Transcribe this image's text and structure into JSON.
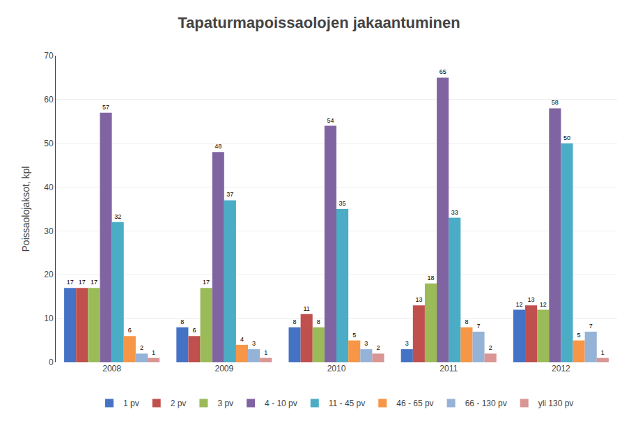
{
  "chart_data": {
    "type": "bar",
    "title": "Tapaturmapoissaolojen jakaantuminen",
    "ylabel": "Poissaolojaksot, kpl",
    "categories": [
      "2008",
      "2009",
      "2010",
      "2011",
      "2012"
    ],
    "series": [
      {
        "name": "1 pv",
        "color": "#4472C4",
        "values": [
          17,
          8,
          8,
          3,
          12
        ]
      },
      {
        "name": "2 pv",
        "color": "#C0504D",
        "values": [
          17,
          6,
          11,
          13,
          13
        ]
      },
      {
        "name": "3 pv",
        "color": "#9BBB59",
        "values": [
          17,
          17,
          8,
          18,
          12
        ]
      },
      {
        "name": "4 - 10 pv",
        "color": "#8064A2",
        "values": [
          57,
          48,
          54,
          65,
          58
        ]
      },
      {
        "name": "11 - 45 pv",
        "color": "#4BACC6",
        "values": [
          32,
          37,
          35,
          33,
          50
        ]
      },
      {
        "name": "46 - 65 pv",
        "color": "#F79646",
        "values": [
          6,
          4,
          5,
          8,
          5
        ]
      },
      {
        "name": "66 - 130 pv",
        "color": "#95B3D7",
        "values": [
          2,
          3,
          3,
          7,
          7
        ]
      },
      {
        "name": "yli 130 pv",
        "color": "#D99694",
        "values": [
          1,
          1,
          2,
          2,
          1
        ]
      }
    ],
    "ylim": [
      0,
      70
    ],
    "yticks": [
      0,
      10,
      20,
      30,
      40,
      50,
      60,
      70
    ],
    "grid": true,
    "legend": "bottom",
    "data_labels": true
  }
}
